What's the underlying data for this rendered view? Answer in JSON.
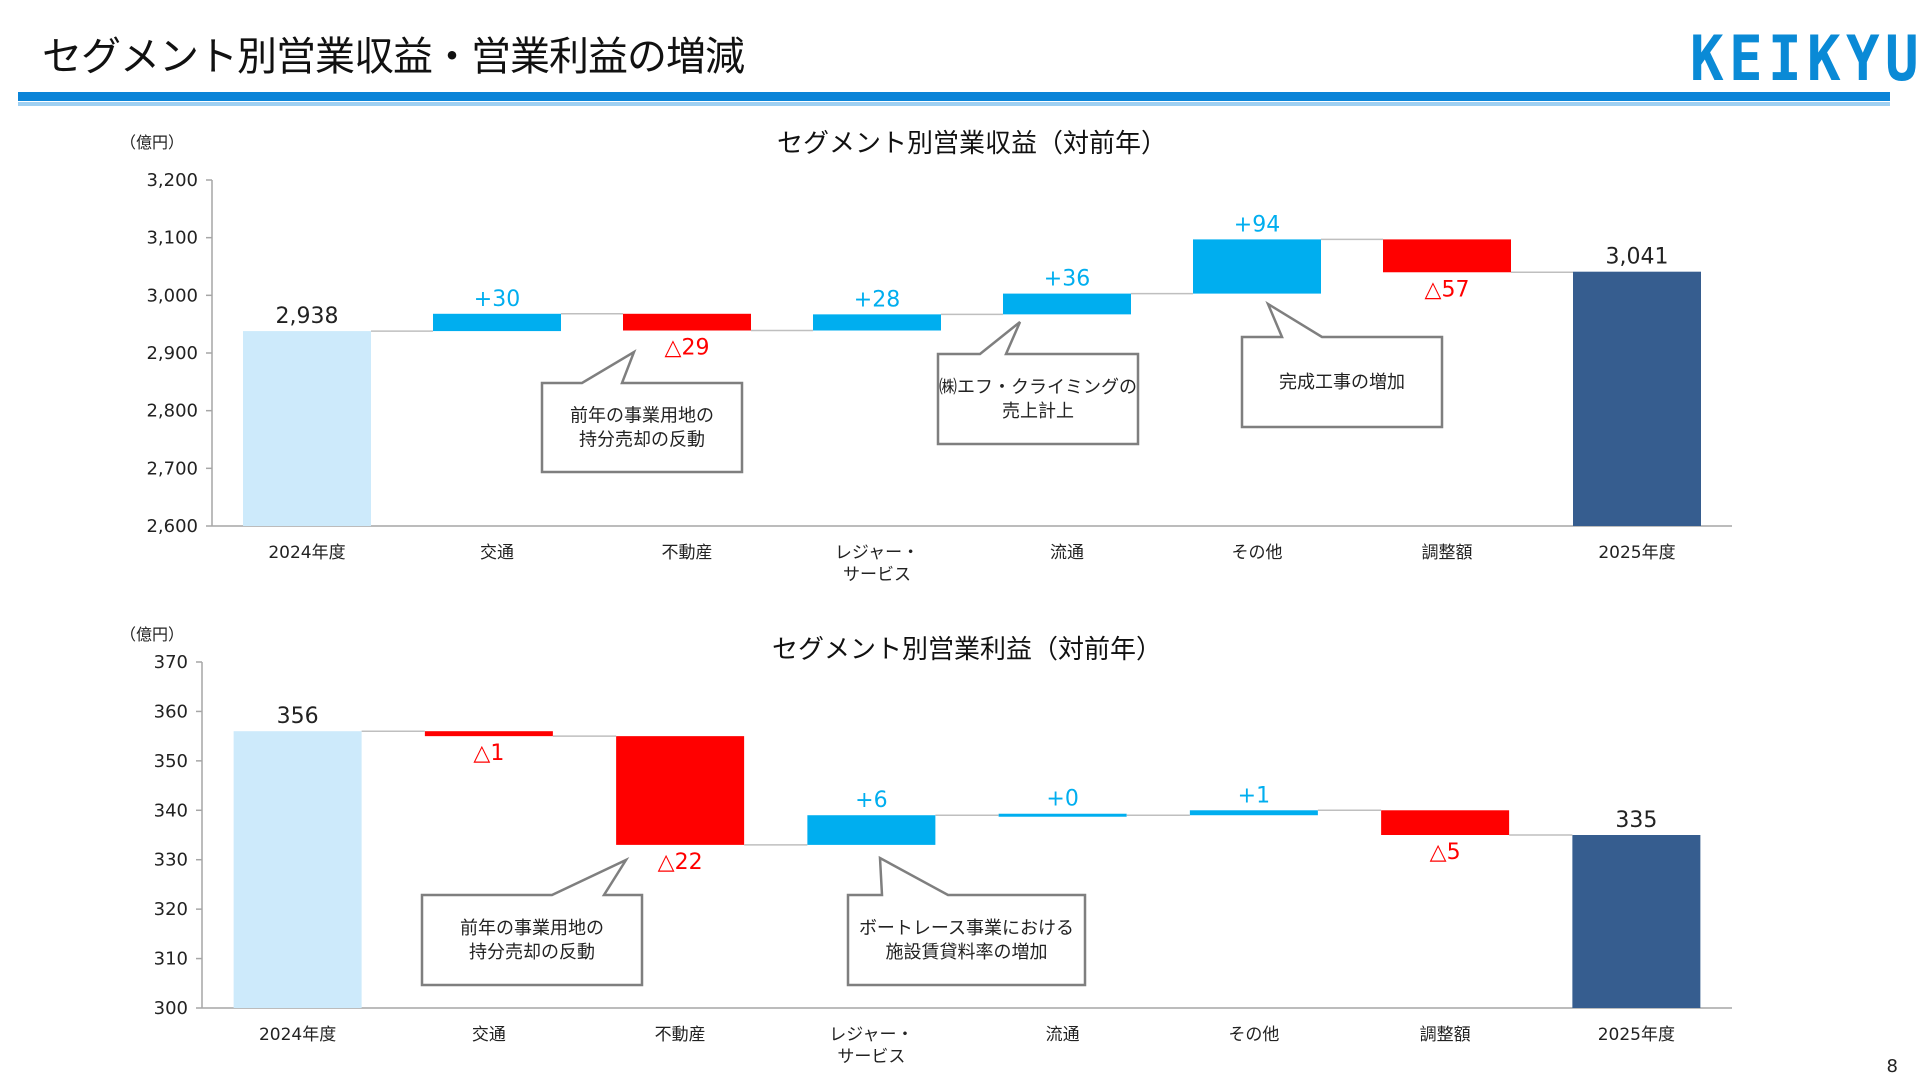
{
  "header": {
    "title": "セグメント別営業収益・営業利益の増減",
    "logo": "KEIKYU",
    "accent": "#0a84d8",
    "page_number": "8"
  },
  "colors": {
    "base_start": "#cdeafb",
    "base_end": "#365d8f",
    "increase": "#00aeef",
    "decrease": "#ff0000",
    "connector": "#bfbfbf"
  },
  "chart_data": [
    {
      "type": "bar",
      "subtype": "waterfall",
      "title": "セグメント別営業収益（対前年）",
      "unit_label": "（億円）",
      "categories": [
        "2024年度",
        "交通",
        "不動産",
        "レジャー・\nサービス",
        "流通",
        "その他",
        "調整額",
        "2025年度"
      ],
      "values": [
        2938,
        30,
        -29,
        28,
        36,
        94,
        -57,
        3041
      ],
      "data_labels": [
        "2,938",
        "+30",
        "△29",
        "+28",
        "+36",
        "+94",
        "△57",
        "3,041"
      ],
      "measure": [
        "total",
        "relative",
        "relative",
        "relative",
        "relative",
        "relative",
        "relative",
        "total"
      ],
      "ylim": [
        2600,
        3200
      ],
      "yticks": [
        "2,600",
        "2,700",
        "2,800",
        "2,900",
        "3,000",
        "3,100",
        "3,200"
      ],
      "grid": false,
      "callouts": [
        {
          "text": [
            "前年の事業用地の",
            "持分売却の反動"
          ]
        },
        {
          "text": [
            "㈱エフ・クライミングの",
            "売上計上"
          ]
        },
        {
          "text": [
            "完成工事の増加"
          ]
        }
      ]
    },
    {
      "type": "bar",
      "subtype": "waterfall",
      "title": "セグメント別営業利益（対前年）",
      "unit_label": "（億円）",
      "categories": [
        "2024年度",
        "交通",
        "不動産",
        "レジャー・\nサービス",
        "流通",
        "その他",
        "調整額",
        "2025年度"
      ],
      "values": [
        356,
        -1,
        -22,
        6,
        0,
        1,
        -5,
        335
      ],
      "data_labels": [
        "356",
        "△1",
        "△22",
        "+6",
        "+0",
        "+1",
        "△5",
        "335"
      ],
      "measure": [
        "total",
        "relative",
        "relative",
        "relative",
        "relative",
        "relative",
        "relative",
        "total"
      ],
      "ylim": [
        300,
        370
      ],
      "yticks": [
        "300",
        "310",
        "320",
        "330",
        "340",
        "350",
        "360",
        "370"
      ],
      "grid": false,
      "callouts": [
        {
          "text": [
            "前年の事業用地の",
            "持分売却の反動"
          ]
        },
        {
          "text": [
            "ボートレース事業における",
            "施設賃貸料率の増加"
          ]
        }
      ]
    }
  ]
}
